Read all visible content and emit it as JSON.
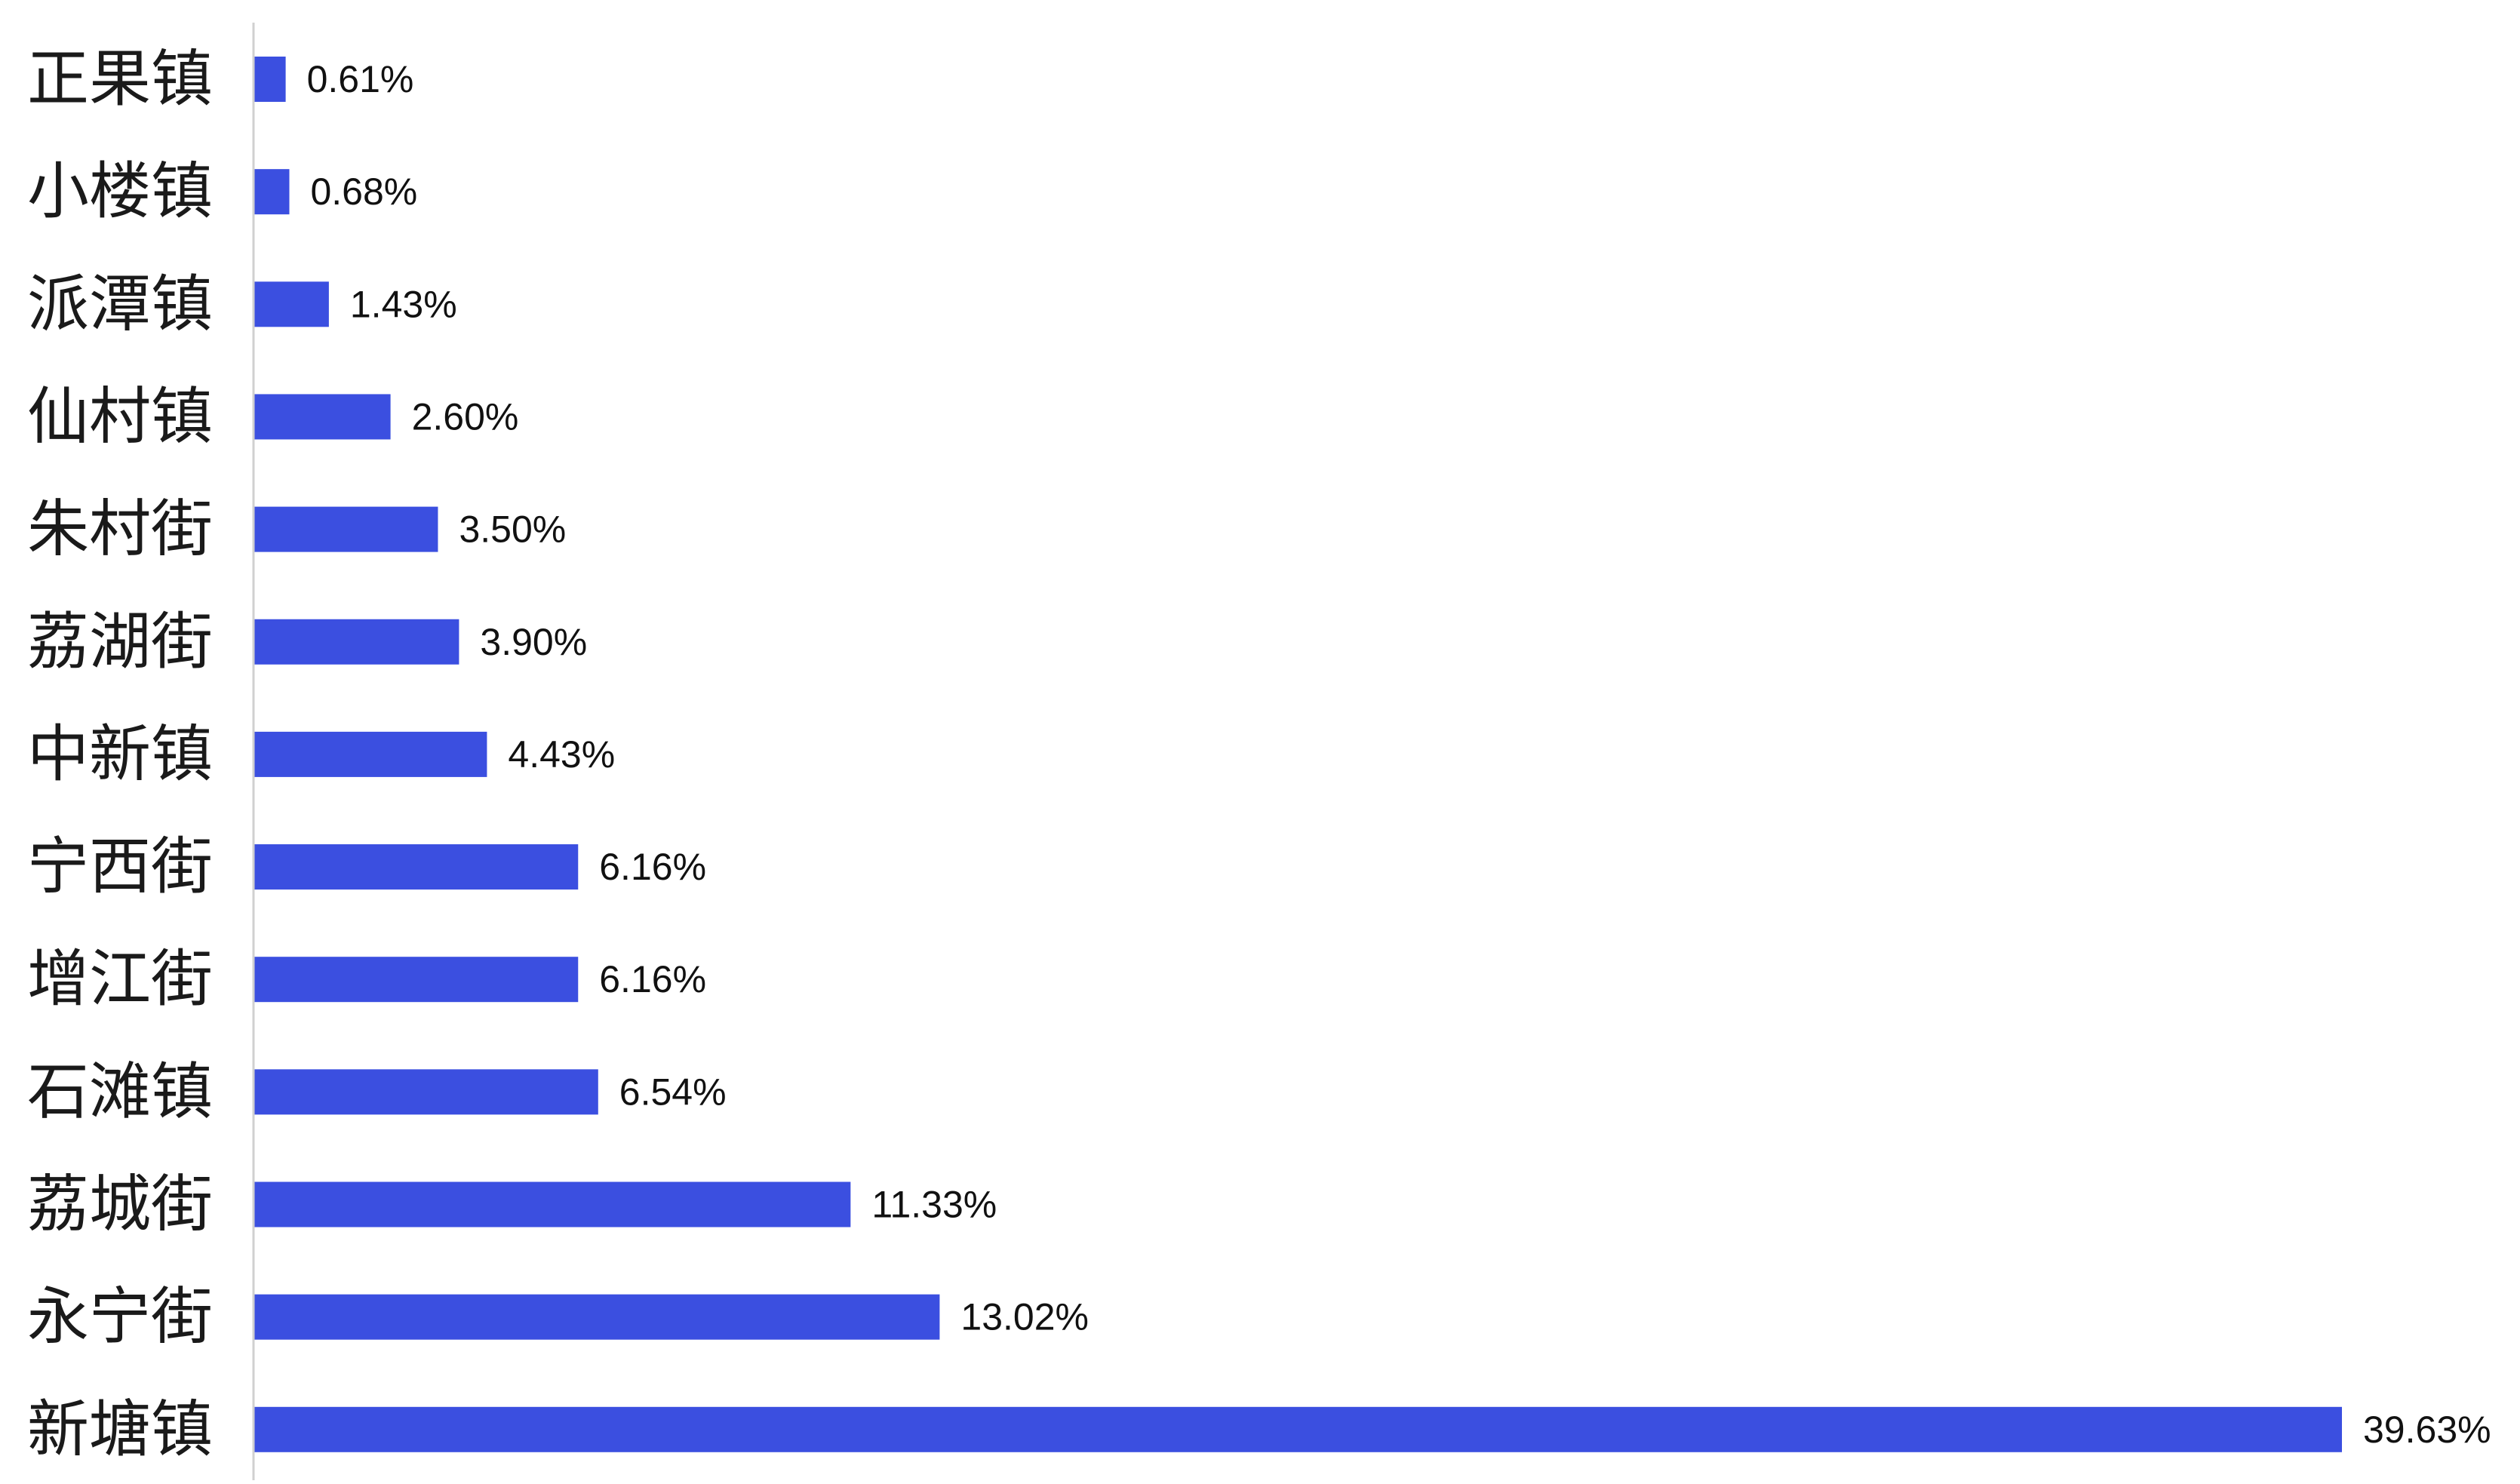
{
  "chart_data": {
    "type": "bar",
    "orientation": "horizontal",
    "title": "",
    "xlabel": "",
    "ylabel": "",
    "categories": [
      "正果镇",
      "小楼镇",
      "派潭镇",
      "仙村镇",
      "朱村街",
      "荔湖街",
      "中新镇",
      "宁西街",
      "增江街",
      "石滩镇",
      "荔城街",
      "永宁街",
      "新塘镇"
    ],
    "values": [
      0.61,
      0.68,
      1.43,
      2.6,
      3.5,
      3.9,
      4.43,
      6.16,
      6.16,
      6.54,
      11.33,
      13.02,
      39.63
    ],
    "value_labels": [
      "0.61%",
      "0.68%",
      "1.43%",
      "2.60%",
      "3.50%",
      "3.90%",
      "4.43%",
      "6.16%",
      "6.16%",
      "6.54%",
      "11.33%",
      "13.02%",
      "39.63%"
    ],
    "xlim": [
      0,
      40
    ],
    "grid": false,
    "legend": "none",
    "bar_color": "#3b4fe0",
    "axis_color": "#d0d0d0"
  }
}
